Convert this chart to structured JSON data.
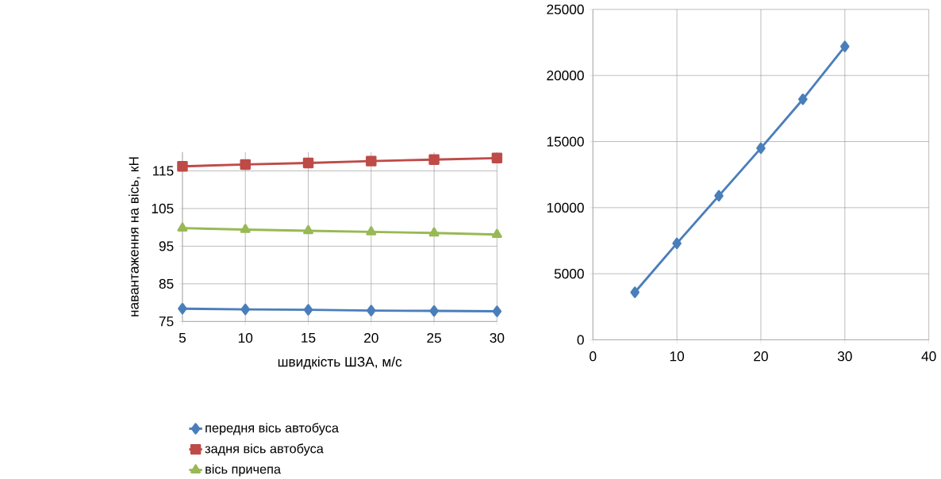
{
  "chart_data": [
    {
      "type": "line",
      "xlabel": "швидкість ШЗА, м/с",
      "ylabel": "навантаження на вісь, кН",
      "x": [
        5,
        10,
        15,
        20,
        25,
        30
      ],
      "xlim": [
        5,
        30
      ],
      "xticks": [
        5,
        10,
        15,
        20,
        25,
        30
      ],
      "ylim": [
        75,
        120
      ],
      "yticks": [
        75,
        85,
        95,
        105,
        115
      ],
      "grid": true,
      "legend": "bottom",
      "line_style": "solid",
      "series": [
        {
          "name": "передня вісь автобуса",
          "color": "#4a7ebb",
          "marker": "diamond",
          "values": [
            78.4,
            78.2,
            78.1,
            77.9,
            77.8,
            77.7
          ]
        },
        {
          "name": "задня вісь автобуса",
          "color": "#be4b48",
          "marker": "square",
          "values": [
            116.2,
            116.7,
            117.1,
            117.6,
            118.0,
            118.4
          ]
        },
        {
          "name": "вісь причепа",
          "color": "#98b954",
          "marker": "triangle",
          "values": [
            99.8,
            99.4,
            99.1,
            98.8,
            98.5,
            98.1
          ]
        }
      ]
    },
    {
      "type": "line",
      "x": [
        5,
        10,
        15,
        20,
        25,
        30
      ],
      "values": [
        3600,
        7300,
        10900,
        14500,
        18200,
        22200
      ],
      "color": "#4a7ebb",
      "marker": "diamond",
      "line_style": "solid",
      "xlim": [
        0,
        40
      ],
      "xticks": [
        0,
        10,
        20,
        30,
        40
      ],
      "ylim": [
        0,
        25000
      ],
      "yticks": [
        0,
        5000,
        10000,
        15000,
        20000,
        25000
      ],
      "grid": true
    }
  ]
}
